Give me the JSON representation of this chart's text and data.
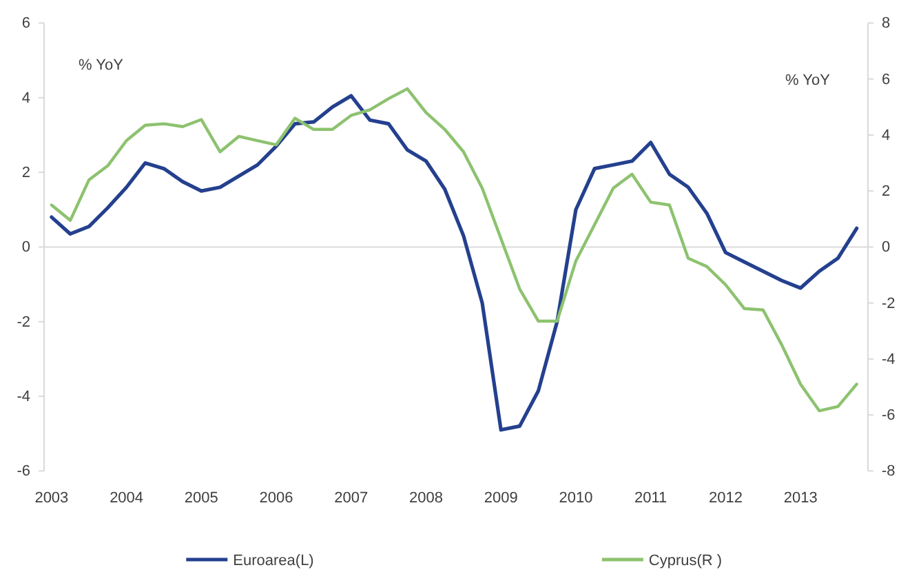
{
  "chart_data": {
    "type": "line",
    "x": [
      2003,
      2003.25,
      2003.5,
      2003.75,
      2004,
      2004.25,
      2004.5,
      2004.75,
      2005,
      2005.25,
      2005.5,
      2005.75,
      2006,
      2006.25,
      2006.5,
      2006.75,
      2007,
      2007.25,
      2007.5,
      2007.75,
      2008,
      2008.25,
      2008.5,
      2008.75,
      2009,
      2009.25,
      2009.5,
      2009.75,
      2010,
      2010.25,
      2010.5,
      2010.75,
      2011,
      2011.25,
      2011.5,
      2011.75,
      2012,
      2012.25,
      2012.5,
      2012.75,
      2013,
      2013.25,
      2013.5,
      2013.75
    ],
    "series": [
      {
        "name": "Euroarea(L)",
        "color": "#24408e",
        "axis": "y",
        "values": [
          0.8,
          0.35,
          0.55,
          1.05,
          1.6,
          2.25,
          2.1,
          1.75,
          1.5,
          1.6,
          1.9,
          2.2,
          2.7,
          3.3,
          3.35,
          3.75,
          4.05,
          3.4,
          3.3,
          2.6,
          2.3,
          1.55,
          0.3,
          -1.5,
          -4.9,
          -4.8,
          -3.85,
          -2.0,
          1.0,
          2.1,
          2.2,
          2.3,
          2.8,
          1.95,
          1.6,
          0.9,
          -0.15,
          -0.4,
          -0.65,
          -0.9,
          -1.1,
          -0.65,
          -0.3,
          0.5
        ]
      },
      {
        "name": "Cyprus(R )",
        "color": "#8dc26f",
        "axis": "y2",
        "values": [
          1.5,
          0.95,
          2.4,
          2.9,
          3.8,
          4.35,
          4.4,
          4.3,
          4.55,
          3.4,
          3.95,
          3.8,
          3.65,
          4.6,
          4.2,
          4.2,
          4.7,
          4.9,
          5.3,
          5.65,
          4.8,
          4.2,
          3.4,
          2.1,
          0.3,
          -1.5,
          -2.65,
          -2.65,
          -0.5,
          0.8,
          2.1,
          2.6,
          1.6,
          1.5,
          -0.4,
          -0.7,
          -1.35,
          -2.2,
          -2.25,
          -3.5,
          -4.9,
          -5.85,
          -5.7,
          -4.9
        ]
      }
    ],
    "xlim": [
      2002.9,
      2013.9
    ],
    "xticks": [
      2003,
      2004,
      2005,
      2006,
      2007,
      2008,
      2009,
      2010,
      2011,
      2012,
      2013
    ],
    "ylim": [
      -6,
      6
    ],
    "yticks": [
      -6,
      -4,
      -2,
      0,
      2,
      4,
      6
    ],
    "y2lim": [
      -8,
      8
    ],
    "y2ticks": [
      -8,
      -6,
      -4,
      -2,
      0,
      2,
      4,
      6,
      8
    ],
    "ylabel": "% YoY",
    "y2label": "% YoY",
    "ref_lines": [
      {
        "axis": "y",
        "value": 0,
        "color": "#d9d9d9"
      }
    ],
    "legend": "bottom"
  }
}
